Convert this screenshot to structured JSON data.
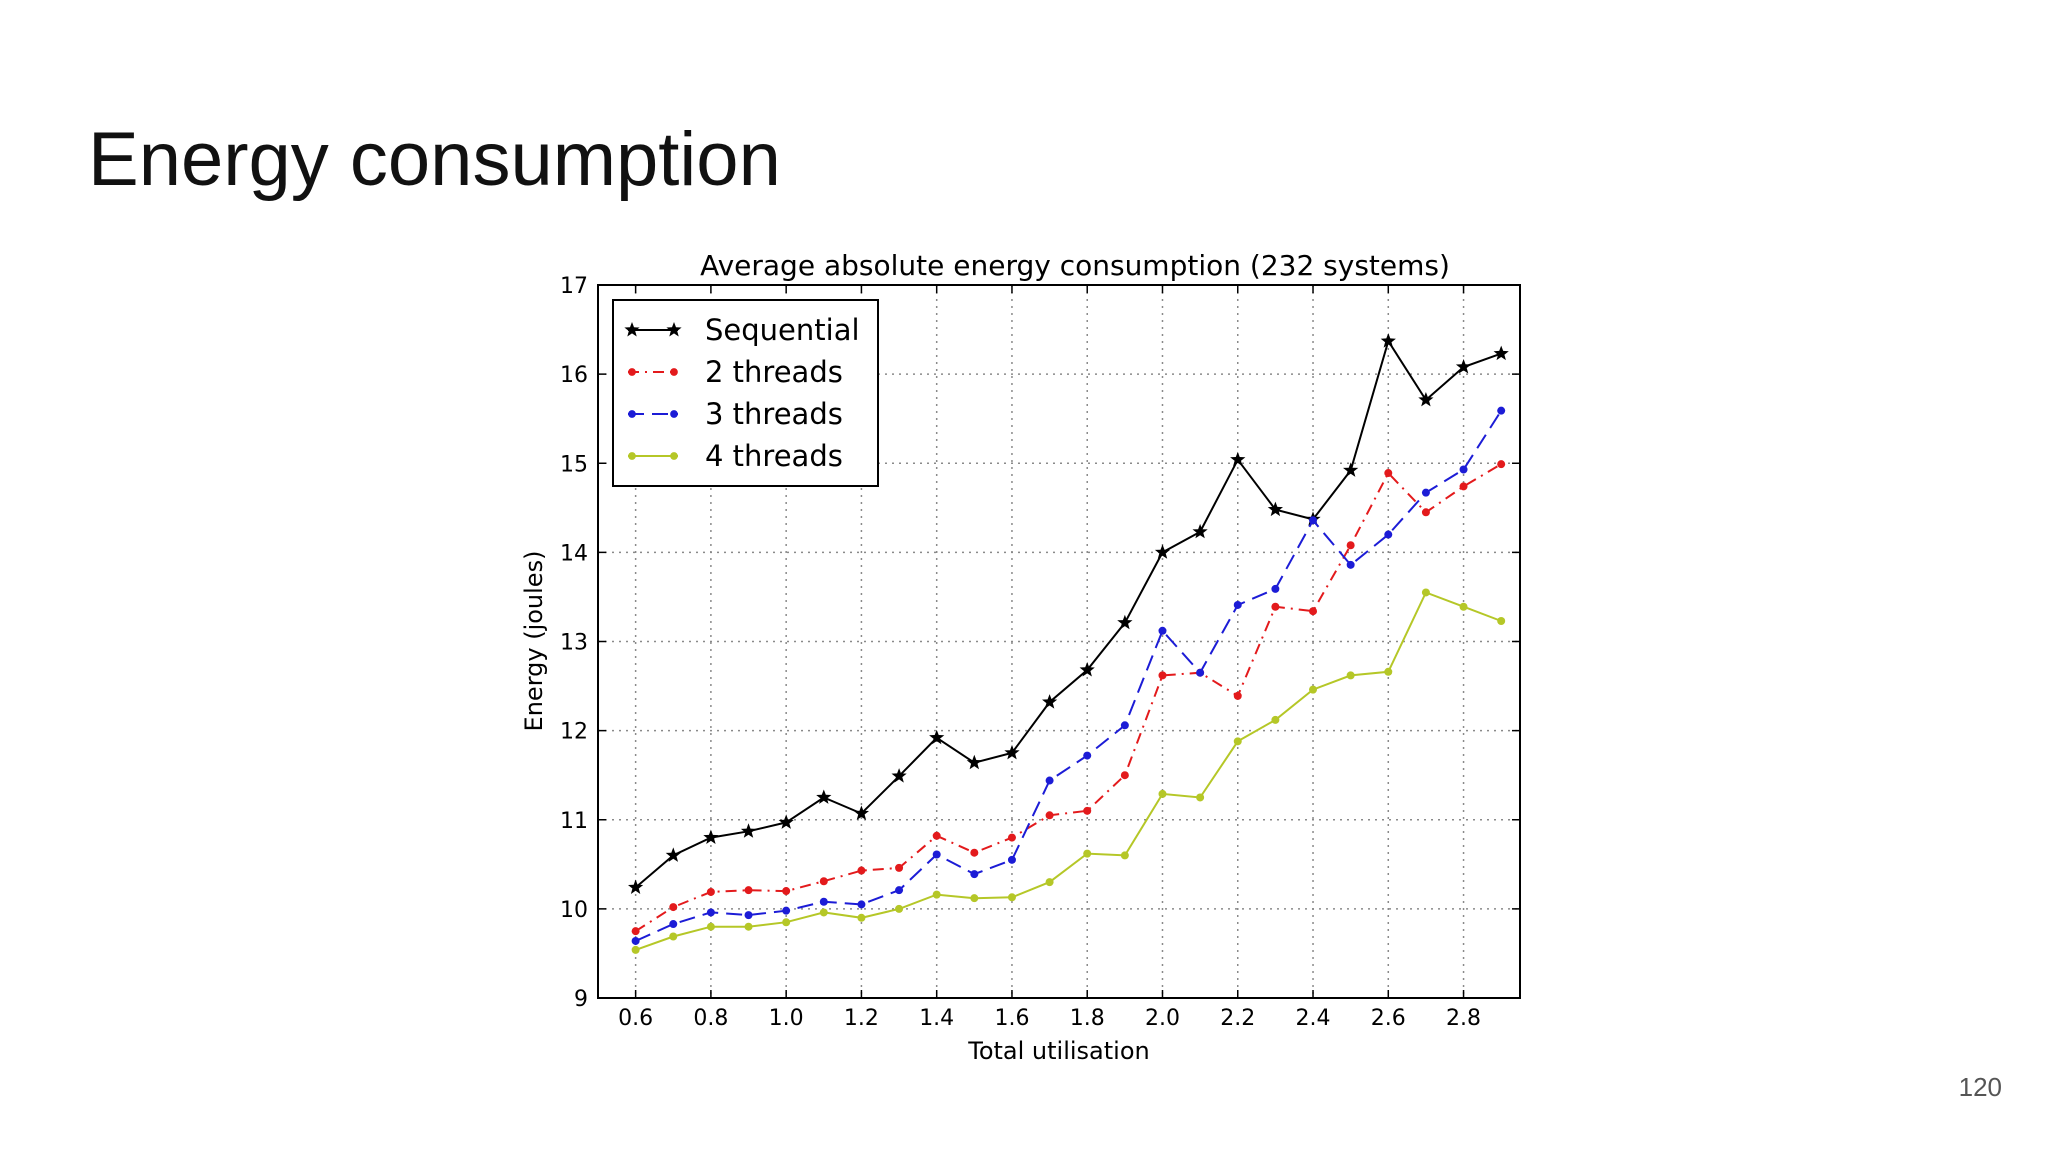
{
  "slide": {
    "title": "Energy consumption",
    "page_number": "120"
  },
  "chart_data": {
    "type": "line",
    "title": "Average absolute energy consumption (232 systems)",
    "xlabel": "Total utilisation",
    "ylabel": "Energy (joules)",
    "xlim": [
      0.5,
      2.95
    ],
    "ylim": [
      9,
      17
    ],
    "xticks": [
      "0.6",
      "0.8",
      "1.0",
      "1.2",
      "1.4",
      "1.6",
      "1.8",
      "2.0",
      "2.2",
      "2.4",
      "2.6",
      "2.8"
    ],
    "yticks": [
      "9",
      "10",
      "11",
      "12",
      "13",
      "14",
      "15",
      "16",
      "17"
    ],
    "grid": true,
    "legend_position": "top-left",
    "x": [
      0.6,
      0.7,
      0.8,
      0.9,
      1.0,
      1.1,
      1.2,
      1.3,
      1.4,
      1.5,
      1.6,
      1.7,
      1.8,
      1.9,
      2.0,
      2.1,
      2.2,
      2.3,
      2.4,
      2.5,
      2.6,
      2.7,
      2.8,
      2.9
    ],
    "series": [
      {
        "name": "Sequential",
        "color": "#000000",
        "marker": "star",
        "linestyle": "solid",
        "values": [
          10.24,
          10.6,
          10.8,
          10.87,
          10.97,
          11.25,
          11.07,
          11.49,
          11.92,
          11.64,
          11.75,
          12.32,
          12.68,
          13.21,
          14.0,
          14.23,
          15.04,
          14.48,
          14.37,
          14.92,
          16.37,
          15.71,
          16.08,
          16.23
        ]
      },
      {
        "name": "2 threads",
        "color": "#e31a1c",
        "marker": "dot",
        "linestyle": "dashdot",
        "values": [
          9.75,
          10.02,
          10.19,
          10.21,
          10.2,
          10.31,
          10.43,
          10.46,
          10.82,
          10.63,
          10.8,
          11.05,
          11.1,
          11.5,
          12.62,
          12.65,
          12.39,
          13.39,
          13.34,
          14.08,
          14.89,
          14.45,
          14.74,
          14.99
        ]
      },
      {
        "name": "3 threads",
        "color": "#1c1cd6",
        "marker": "dot",
        "linestyle": "dashed",
        "values": [
          9.64,
          9.83,
          9.96,
          9.93,
          9.98,
          10.08,
          10.05,
          10.21,
          10.61,
          10.39,
          10.55,
          11.44,
          11.72,
          12.06,
          13.12,
          12.65,
          13.41,
          13.59,
          14.36,
          13.86,
          14.2,
          14.67,
          14.93,
          15.59
        ]
      },
      {
        "name": "4 threads",
        "color": "#b5c727",
        "marker": "dot",
        "linestyle": "solid",
        "values": [
          9.54,
          9.69,
          9.8,
          9.8,
          9.85,
          9.96,
          9.9,
          10.0,
          10.16,
          10.12,
          10.13,
          10.3,
          10.62,
          10.6,
          11.29,
          11.25,
          11.88,
          12.12,
          12.46,
          12.62,
          12.66,
          13.55,
          13.39,
          13.23
        ]
      }
    ]
  }
}
